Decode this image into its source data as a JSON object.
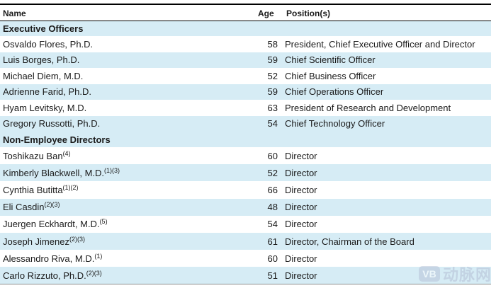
{
  "header": {
    "name": "Name",
    "age": "Age",
    "position": "Position(s)"
  },
  "sections": [
    {
      "title": "Executive Officers",
      "rows": [
        {
          "name": "Osvaldo Flores, Ph.D.",
          "sup": "",
          "age": "58",
          "position": "President, Chief Executive Officer and Director"
        },
        {
          "name": "Luis Borges, Ph.D.",
          "sup": "",
          "age": "59",
          "position": "Chief Scientific Officer"
        },
        {
          "name": "Michael Diem, M.D.",
          "sup": "",
          "age": "52",
          "position": "Chief Business Officer"
        },
        {
          "name": "Adrienne Farid, Ph.D.",
          "sup": "",
          "age": "59",
          "position": "Chief Operations Officer"
        },
        {
          "name": "Hyam Levitsky, M.D.",
          "sup": "",
          "age": "63",
          "position": "President of Research and Development"
        },
        {
          "name": "Gregory Russotti, Ph.D.",
          "sup": "",
          "age": "54",
          "position": "Chief Technology Officer"
        }
      ]
    },
    {
      "title": "Non-Employee Directors",
      "rows": [
        {
          "name": "Toshikazu Ban",
          "sup": "(4)",
          "age": "60",
          "position": "Director"
        },
        {
          "name": "Kimberly Blackwell, M.D.",
          "sup": "(1)(3)",
          "age": "52",
          "position": "Director"
        },
        {
          "name": "Cynthia Butitta",
          "sup": "(1)(2)",
          "age": "66",
          "position": "Director"
        },
        {
          "name": "Eli Casdin",
          "sup": "(2)(3)",
          "age": "48",
          "position": "Director"
        },
        {
          "name": "Juergen Eckhardt, M.D.",
          "sup": "(5)",
          "age": "54",
          "position": "Director"
        },
        {
          "name": "Joseph Jimenez",
          "sup": "(2)(3)",
          "age": "61",
          "position": "Director, Chairman of the Board"
        },
        {
          "name": "Alessandro Riva, M.D.",
          "sup": "(1)",
          "age": "60",
          "position": "Director"
        },
        {
          "name": "Carlo Rizzuto, Ph.D.",
          "sup": "(2)(3)",
          "age": "51",
          "position": "Director"
        }
      ]
    }
  ],
  "watermark": {
    "logo": "VB",
    "text": "动脉网"
  },
  "colors": {
    "band": "#d6ecf5",
    "rule": "#000000"
  }
}
